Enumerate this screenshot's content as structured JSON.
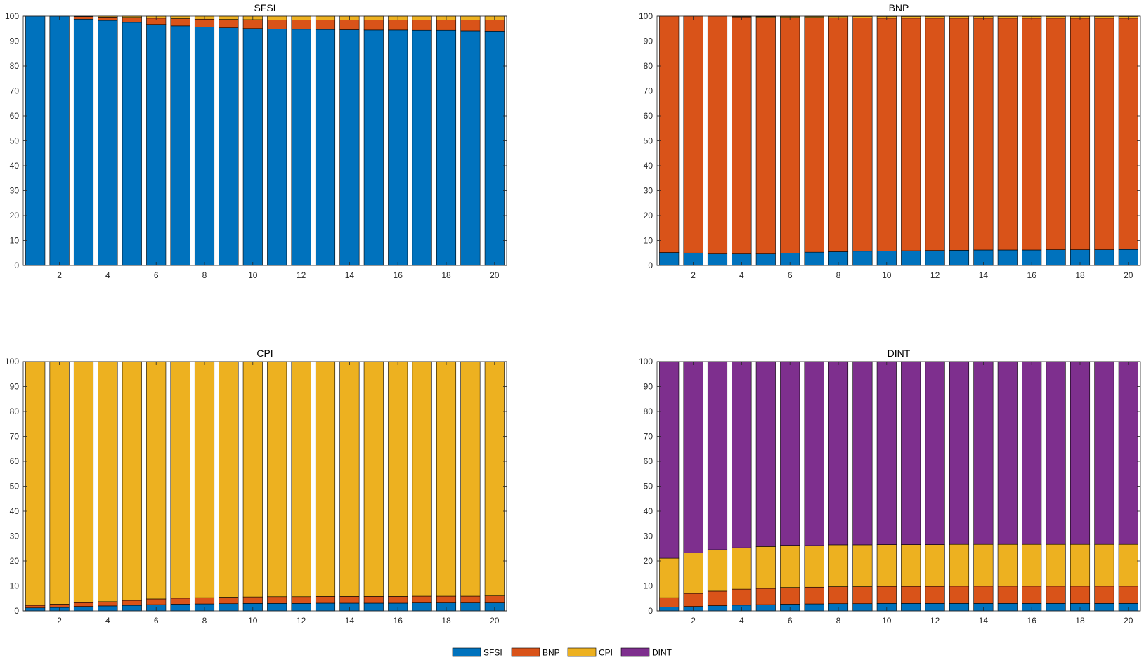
{
  "colors": {
    "SFSI": "#0072BD",
    "BNP": "#D95319",
    "CPI": "#EDB120",
    "DINT": "#7E2F8E"
  },
  "legend": [
    "SFSI",
    "BNP",
    "CPI",
    "DINT"
  ],
  "chart_data": [
    {
      "type": "bar",
      "stacked": true,
      "title": "SFSI",
      "x": [
        1,
        2,
        3,
        4,
        5,
        6,
        7,
        8,
        9,
        10,
        11,
        12,
        13,
        14,
        15,
        16,
        17,
        18,
        19,
        20
      ],
      "xticks": [
        2,
        4,
        6,
        8,
        10,
        12,
        14,
        16,
        18,
        20
      ],
      "ylim": [
        0,
        100
      ],
      "yticks": [
        0,
        10,
        20,
        30,
        40,
        50,
        60,
        70,
        80,
        90,
        100
      ],
      "series": [
        {
          "name": "SFSI",
          "values": [
            100,
            100,
            98.8,
            98.3,
            97.5,
            96.7,
            96.1,
            95.6,
            95.3,
            95.0,
            94.8,
            94.7,
            94.6,
            94.5,
            94.4,
            94.4,
            94.3,
            94.3,
            94.1,
            94.0
          ]
        },
        {
          "name": "BNP",
          "values": [
            0,
            0,
            1.0,
            1.3,
            2.0,
            2.5,
            2.9,
            3.2,
            3.4,
            3.6,
            3.7,
            3.8,
            3.9,
            4.0,
            4.1,
            4.1,
            4.2,
            4.2,
            4.4,
            4.5
          ]
        },
        {
          "name": "CPI",
          "values": [
            0,
            0,
            0.2,
            0.4,
            0.5,
            0.8,
            1.0,
            1.2,
            1.3,
            1.4,
            1.5,
            1.5,
            1.5,
            1.5,
            1.5,
            1.5,
            1.5,
            1.5,
            1.5,
            1.5
          ]
        },
        {
          "name": "DINT",
          "values": [
            0,
            0,
            0,
            0,
            0,
            0,
            0,
            0,
            0,
            0,
            0,
            0,
            0,
            0,
            0,
            0,
            0,
            0,
            0,
            0
          ]
        }
      ]
    },
    {
      "type": "bar",
      "stacked": true,
      "title": "BNP",
      "x": [
        1,
        2,
        3,
        4,
        5,
        6,
        7,
        8,
        9,
        10,
        11,
        12,
        13,
        14,
        15,
        16,
        17,
        18,
        19,
        20
      ],
      "xticks": [
        2,
        4,
        6,
        8,
        10,
        12,
        14,
        16,
        18,
        20
      ],
      "ylim": [
        0,
        100
      ],
      "yticks": [
        0,
        10,
        20,
        30,
        40,
        50,
        60,
        70,
        80,
        90,
        100
      ],
      "series": [
        {
          "name": "SFSI",
          "values": [
            5.2,
            5.0,
            4.6,
            4.6,
            4.6,
            4.9,
            5.3,
            5.5,
            5.7,
            5.8,
            5.9,
            6.0,
            6.1,
            6.2,
            6.2,
            6.2,
            6.3,
            6.3,
            6.3,
            6.4
          ]
        },
        {
          "name": "BNP",
          "values": [
            94.8,
            95.0,
            95.4,
            95.1,
            94.9,
            94.6,
            94.2,
            93.9,
            93.6,
            93.4,
            93.3,
            93.2,
            93.1,
            93.0,
            93.0,
            93.0,
            92.9,
            92.9,
            92.9,
            92.8
          ]
        },
        {
          "name": "CPI",
          "values": [
            0,
            0,
            0,
            0.2,
            0.3,
            0.4,
            0.4,
            0.5,
            0.6,
            0.7,
            0.7,
            0.7,
            0.7,
            0.7,
            0.7,
            0.7,
            0.7,
            0.7,
            0.7,
            0.7
          ]
        },
        {
          "name": "DINT",
          "values": [
            0,
            0,
            0,
            0.1,
            0.2,
            0.1,
            0.1,
            0.1,
            0.1,
            0.1,
            0.1,
            0.1,
            0.1,
            0.1,
            0.1,
            0.1,
            0.1,
            0.1,
            0.1,
            0.1
          ]
        }
      ]
    },
    {
      "type": "bar",
      "stacked": true,
      "title": "CPI",
      "x": [
        1,
        2,
        3,
        4,
        5,
        6,
        7,
        8,
        9,
        10,
        11,
        12,
        13,
        14,
        15,
        16,
        17,
        18,
        19,
        20
      ],
      "xticks": [
        2,
        4,
        6,
        8,
        10,
        12,
        14,
        16,
        18,
        20
      ],
      "ylim": [
        0,
        100
      ],
      "yticks": [
        0,
        10,
        20,
        30,
        40,
        50,
        60,
        70,
        80,
        90,
        100
      ],
      "series": [
        {
          "name": "SFSI",
          "values": [
            1.2,
            1.4,
            1.8,
            2.0,
            2.2,
            2.5,
            2.7,
            2.8,
            2.9,
            3.0,
            3.0,
            3.0,
            3.1,
            3.1,
            3.1,
            3.1,
            3.2,
            3.2,
            3.2,
            3.2
          ]
        },
        {
          "name": "BNP",
          "values": [
            1.0,
            1.3,
            1.5,
            1.7,
            2.0,
            2.3,
            2.4,
            2.5,
            2.6,
            2.6,
            2.7,
            2.7,
            2.7,
            2.7,
            2.7,
            2.7,
            2.7,
            2.7,
            2.7,
            2.8
          ]
        },
        {
          "name": "CPI",
          "values": [
            97.8,
            97.3,
            96.7,
            96.3,
            95.8,
            95.2,
            94.9,
            94.7,
            94.5,
            94.4,
            94.3,
            94.3,
            94.2,
            94.2,
            94.2,
            94.2,
            94.1,
            94.1,
            94.1,
            94.0
          ]
        },
        {
          "name": "DINT",
          "values": [
            0,
            0,
            0,
            0,
            0,
            0,
            0,
            0,
            0,
            0,
            0,
            0,
            0,
            0,
            0,
            0,
            0,
            0,
            0,
            0
          ]
        }
      ]
    },
    {
      "type": "bar",
      "stacked": true,
      "title": "DINT",
      "x": [
        1,
        2,
        3,
        4,
        5,
        6,
        7,
        8,
        9,
        10,
        11,
        12,
        13,
        14,
        15,
        16,
        17,
        18,
        19,
        20
      ],
      "xticks": [
        2,
        4,
        6,
        8,
        10,
        12,
        14,
        16,
        18,
        20
      ],
      "ylim": [
        0,
        100
      ],
      "yticks": [
        0,
        10,
        20,
        30,
        40,
        50,
        60,
        70,
        80,
        90,
        100
      ],
      "series": [
        {
          "name": "SFSI",
          "values": [
            1.5,
            1.8,
            2.1,
            2.3,
            2.5,
            2.7,
            2.8,
            2.9,
            2.9,
            3.0,
            3.0,
            3.0,
            3.0,
            3.0,
            3.0,
            3.0,
            3.0,
            3.0,
            3.0,
            3.0
          ]
        },
        {
          "name": "BNP",
          "values": [
            3.8,
            5.2,
            5.8,
            6.4,
            6.5,
            6.7,
            6.7,
            6.8,
            6.8,
            6.8,
            6.8,
            6.8,
            6.9,
            6.9,
            6.9,
            6.9,
            6.9,
            6.9,
            6.9,
            6.9
          ]
        },
        {
          "name": "CPI",
          "values": [
            15.8,
            16.3,
            16.6,
            16.6,
            16.8,
            16.9,
            16.7,
            16.8,
            16.8,
            16.8,
            16.8,
            16.8,
            16.8,
            16.8,
            16.8,
            16.8,
            16.8,
            16.8,
            16.8,
            16.8
          ]
        },
        {
          "name": "DINT",
          "values": [
            78.9,
            76.7,
            75.5,
            74.7,
            74.2,
            73.7,
            73.8,
            73.5,
            73.5,
            73.4,
            73.4,
            73.4,
            73.3,
            73.3,
            73.3,
            73.3,
            73.3,
            73.3,
            73.3,
            73.3
          ]
        }
      ]
    }
  ]
}
